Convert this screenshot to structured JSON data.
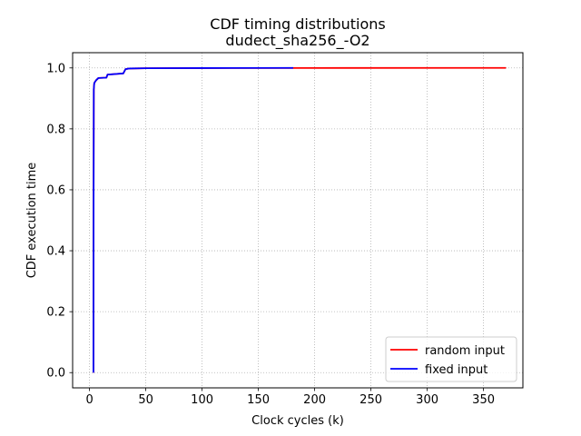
{
  "chart_data": {
    "type": "line",
    "title": "CDF timing distributions",
    "subtitle": "dudect_sha256_-O2",
    "xlabel": "Clock cycles (k)",
    "ylabel": "CDF execution time",
    "xlim": [
      -15,
      385
    ],
    "ylim": [
      -0.05,
      1.05
    ],
    "xticks": [
      0,
      50,
      100,
      150,
      200,
      250,
      300,
      350
    ],
    "yticks": [
      0.0,
      0.2,
      0.4,
      0.6,
      0.8,
      1.0
    ],
    "xtick_labels": [
      "0",
      "50",
      "100",
      "150",
      "200",
      "250",
      "300",
      "350"
    ],
    "ytick_labels": [
      "0.0",
      "0.2",
      "0.4",
      "0.6",
      "0.8",
      "1.0"
    ],
    "grid": true,
    "legend_position": "bottom-right",
    "series": [
      {
        "name": "random input",
        "color": "#ff0000",
        "x": [
          3.5,
          3.6,
          3.8,
          4.2,
          5.0,
          6.0,
          8.0,
          15.0,
          16.0,
          30.0,
          32.0,
          35.0,
          50.0,
          100.0,
          180.0,
          370.0
        ],
        "y": [
          0.0,
          0.5,
          0.93,
          0.95,
          0.955,
          0.96,
          0.967,
          0.968,
          0.978,
          0.982,
          0.996,
          0.998,
          0.999,
          0.9995,
          0.9998,
          1.0
        ]
      },
      {
        "name": "fixed input",
        "color": "#0000ff",
        "x": [
          3.5,
          3.6,
          3.8,
          4.2,
          5.0,
          6.0,
          8.0,
          15.0,
          16.0,
          30.0,
          32.0,
          35.0,
          50.0,
          100.0,
          181.0
        ],
        "y": [
          0.0,
          0.5,
          0.93,
          0.95,
          0.955,
          0.96,
          0.967,
          0.968,
          0.978,
          0.982,
          0.996,
          0.998,
          0.999,
          0.9995,
          1.0
        ]
      }
    ]
  }
}
